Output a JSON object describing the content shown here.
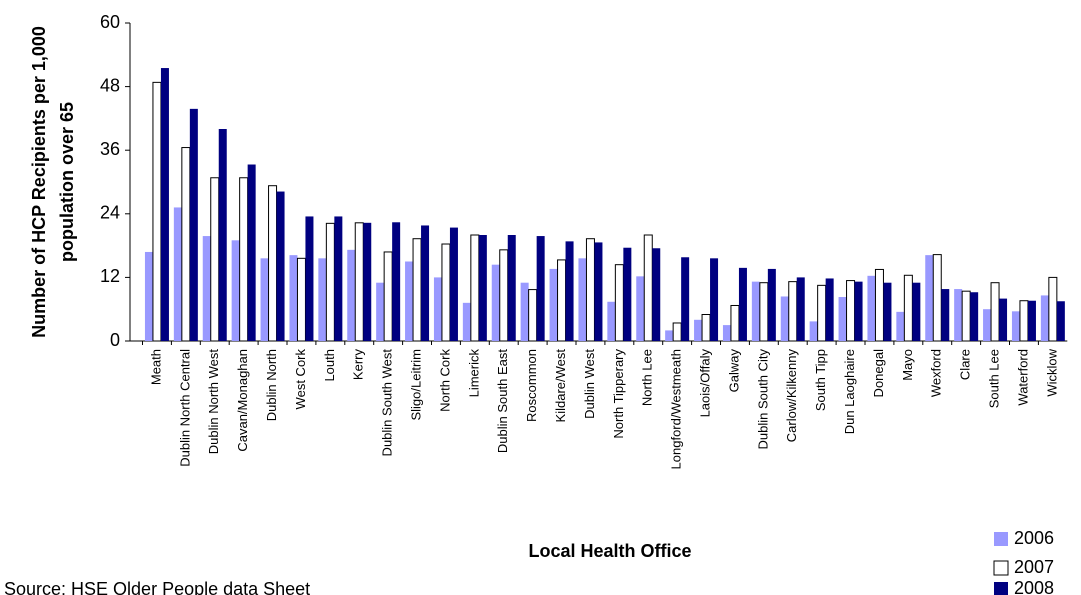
{
  "chart_data": {
    "type": "bar",
    "y_label_lines": [
      "Number of HCP Recipients per 1,000",
      "population over 65"
    ],
    "x_label": "Local Health Office",
    "source": "Source: HSE Older People data Sheet",
    "categories": [
      "Meath",
      "Dublin North Central",
      "Dublin North West",
      "Cavan/Monaghan",
      "Dublin North",
      "West Cork",
      "Louth",
      "Kerry",
      "Dublin South West",
      "Sligo/Leitrim",
      "North Cork",
      "Limerick",
      "Dublin South East",
      "Roscommon",
      "Kildare/West",
      "Dublin West",
      "North Tipperary",
      "North Lee",
      "Longford/Westmeath",
      "Laois/Offaly",
      "Galway",
      "Dublin South City",
      "Carlow/Kilkenny",
      "South Tipp",
      "Dun Laoghaire",
      "Donegal",
      "Mayo",
      "Wexford",
      "Clare",
      "South Lee",
      "Waterford",
      "Wicklow"
    ],
    "series": [
      {
        "name": "2006",
        "color": "#9999ff",
        "values": [
          16.8,
          25.2,
          19.8,
          19,
          15.6,
          16.2,
          15.6,
          17.2,
          11,
          15,
          12,
          7.2,
          14.4,
          11,
          13.6,
          15.6,
          7.4,
          12.2,
          2,
          4,
          3,
          11.2,
          8.4,
          3.7,
          8.3,
          12.3,
          5.5,
          16.2,
          9.8,
          6,
          5.6,
          8.6
        ]
      },
      {
        "name": "2007",
        "color": "#ffffff",
        "values": [
          48.8,
          36.5,
          30.8,
          30.8,
          29.3,
          15.6,
          22.2,
          22.3,
          16.8,
          19.3,
          18.3,
          20,
          17.2,
          9.7,
          15.3,
          19.3,
          14.4,
          20,
          3.4,
          5,
          6.7,
          11,
          11.2,
          10.5,
          11.4,
          13.5,
          12.4,
          16.3,
          9.4,
          11,
          7.6,
          12
        ]
      },
      {
        "name": "2008",
        "color": "#000080",
        "values": [
          51.5,
          43.8,
          40,
          33.3,
          28.2,
          23.5,
          23.5,
          22.3,
          22.4,
          21.8,
          21.4,
          20,
          20,
          19.8,
          18.8,
          18.6,
          17.6,
          17.5,
          15.8,
          15.6,
          13.8,
          13.6,
          12,
          11.8,
          11.2,
          11,
          11,
          9.8,
          9.2,
          8,
          7.6,
          7.5
        ]
      }
    ],
    "ylim": [
      0,
      60
    ],
    "yticks": [
      0,
      12,
      24,
      36,
      48,
      60
    ],
    "grid": false,
    "legend": "bottom-right"
  }
}
